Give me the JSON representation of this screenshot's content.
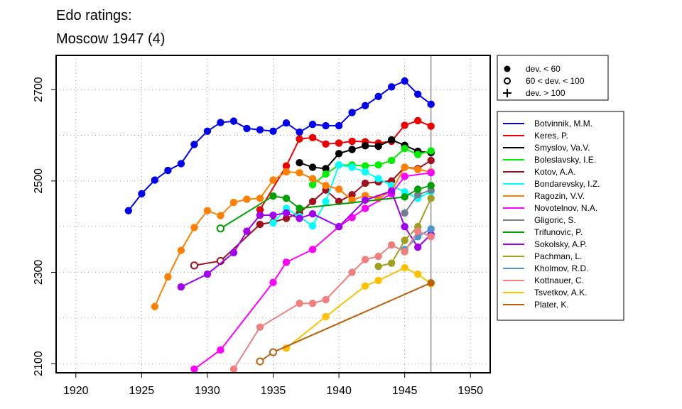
{
  "chart_data": {
    "type": "line",
    "title_line1": "Edo ratings:",
    "title_line2": "Moscow 1947 (4)",
    "xlabel": "",
    "ylabel": "",
    "xlim": [
      1918.5,
      1951.5
    ],
    "ylim": [
      2080,
      2775
    ],
    "x_ticks": [
      1920,
      1925,
      1930,
      1935,
      1940,
      1945,
      1950
    ],
    "y_ticks": [
      2100,
      2300,
      2500,
      2700
    ],
    "y_minor_gridlines": [
      2100,
      2200,
      2300,
      2400,
      2500,
      2600,
      2700
    ],
    "grid": "dotted",
    "event_line_x": 1947,
    "marker_legend": [
      {
        "symbol": "filled-circle",
        "label": "dev. < 60"
      },
      {
        "symbol": "open-circle",
        "label": "60 < dev. < 100"
      },
      {
        "symbol": "plus",
        "label": "dev. > 100"
      }
    ],
    "series": [
      {
        "name": "Botvinnik, M.M.",
        "color": "#0000EE",
        "points": [
          [
            1924,
            2435,
            "f"
          ],
          [
            1925,
            2472,
            "f"
          ],
          [
            1926,
            2502,
            "f"
          ],
          [
            1927,
            2523,
            "f"
          ],
          [
            1928,
            2538,
            "f"
          ],
          [
            1929,
            2580,
            "f"
          ],
          [
            1930,
            2609,
            "f"
          ],
          [
            1931,
            2628,
            "f"
          ],
          [
            1932,
            2631,
            "f"
          ],
          [
            1933,
            2615,
            "f"
          ],
          [
            1934,
            2612,
            "f"
          ],
          [
            1935,
            2609,
            "f"
          ],
          [
            1936,
            2627,
            "f"
          ],
          [
            1937,
            2607,
            "f"
          ],
          [
            1938,
            2624,
            "f"
          ],
          [
            1939,
            2621,
            "f"
          ],
          [
            1940,
            2621,
            "f"
          ],
          [
            1941,
            2650,
            "f"
          ],
          [
            1942,
            2665,
            "f"
          ],
          [
            1943,
            2685,
            "f"
          ],
          [
            1944,
            2706,
            "f"
          ],
          [
            1945,
            2719,
            "f"
          ],
          [
            1946,
            2690,
            "f"
          ],
          [
            1947,
            2668,
            "f"
          ]
        ]
      },
      {
        "name": "Keres, P.",
        "color": "#EE0000",
        "points": [
          [
            1934,
            2437,
            "f"
          ],
          [
            1936,
            2533,
            "f"
          ],
          [
            1937,
            2592,
            "f"
          ],
          [
            1938,
            2595,
            "f"
          ],
          [
            1939,
            2581,
            "f"
          ],
          [
            1940,
            2583,
            "f"
          ],
          [
            1941,
            2587,
            "f"
          ],
          [
            1942,
            2586,
            "f"
          ],
          [
            1943,
            2583,
            "f"
          ],
          [
            1944,
            2587,
            "f"
          ],
          [
            1945,
            2622,
            "f"
          ],
          [
            1946,
            2632,
            "f"
          ],
          [
            1947,
            2620,
            "f"
          ]
        ]
      },
      {
        "name": "Smyslov, Va.V.",
        "color": "#000000",
        "points": [
          [
            1937,
            2540,
            "f"
          ],
          [
            1938,
            2530,
            "f"
          ],
          [
            1939,
            2527,
            "f"
          ],
          [
            1940,
            2560,
            "f"
          ],
          [
            1941,
            2569,
            "f"
          ],
          [
            1942,
            2577,
            "f"
          ],
          [
            1943,
            2576,
            "f"
          ],
          [
            1944,
            2590,
            "f"
          ],
          [
            1945,
            2578,
            "f"
          ],
          [
            1946,
            2565,
            "f"
          ],
          [
            1947,
            2562,
            "f"
          ]
        ]
      },
      {
        "name": "Boleslavsky, I.E.",
        "color": "#00EE00",
        "points": [
          [
            1938,
            2492,
            "f"
          ],
          [
            1939,
            2515,
            "f"
          ],
          [
            1940,
            2535,
            "f"
          ],
          [
            1941,
            2535,
            "f"
          ],
          [
            1942,
            2533,
            "f"
          ],
          [
            1943,
            2535,
            "f"
          ],
          [
            1944,
            2545,
            "f"
          ],
          [
            1945,
            2571,
            "f"
          ],
          [
            1946,
            2558,
            "f"
          ],
          [
            1947,
            2566,
            "f"
          ]
        ]
      },
      {
        "name": "Kotov, A.A.",
        "color": "#A0101E",
        "points": [
          [
            1929,
            2315,
            "o"
          ],
          [
            1931,
            2325,
            "o"
          ],
          [
            1934,
            2405,
            "f"
          ],
          [
            1935,
            2410,
            "f"
          ],
          [
            1936,
            2418,
            "f"
          ],
          [
            1937,
            2430,
            "f"
          ],
          [
            1938,
            2455,
            "f"
          ],
          [
            1939,
            2480,
            "f"
          ],
          [
            1940,
            2455,
            "f"
          ],
          [
            1941,
            2470,
            "f"
          ],
          [
            1942,
            2495,
            "f"
          ],
          [
            1943,
            2498,
            "f"
          ],
          [
            1944,
            2500,
            "f"
          ],
          [
            1945,
            2530,
            "f"
          ],
          [
            1946,
            2527,
            "f"
          ],
          [
            1947,
            2545,
            "f"
          ]
        ]
      },
      {
        "name": "Bondarevsky, I.Z.",
        "color": "#00FFFF",
        "points": [
          [
            1935,
            2408,
            "f"
          ],
          [
            1936,
            2440,
            "f"
          ],
          [
            1937,
            2422,
            "f"
          ],
          [
            1938,
            2402,
            "f"
          ],
          [
            1939,
            2455,
            "f"
          ],
          [
            1940,
            2535,
            "f"
          ],
          [
            1941,
            2530,
            "f"
          ],
          [
            1942,
            2520,
            "f"
          ],
          [
            1943,
            2505,
            "f"
          ],
          [
            1944,
            2490,
            "f"
          ],
          [
            1945,
            2476,
            "f"
          ],
          [
            1946,
            2462,
            "f"
          ],
          [
            1947,
            2477,
            "f"
          ]
        ]
      },
      {
        "name": "Ragozin, V.V.",
        "color": "#FF7F00",
        "points": [
          [
            1926,
            2225,
            "f"
          ],
          [
            1927,
            2290,
            "f"
          ],
          [
            1928,
            2348,
            "f"
          ],
          [
            1929,
            2398,
            "f"
          ],
          [
            1930,
            2435,
            "f"
          ],
          [
            1931,
            2424,
            "f"
          ],
          [
            1932,
            2453,
            "f"
          ],
          [
            1933,
            2460,
            "f"
          ],
          [
            1934,
            2462,
            "f"
          ],
          [
            1935,
            2502,
            "f"
          ],
          [
            1936,
            2520,
            "f"
          ],
          [
            1937,
            2518,
            "f"
          ],
          [
            1938,
            2505,
            "f"
          ],
          [
            1939,
            2490,
            "f"
          ],
          [
            1940,
            2482,
            "f"
          ],
          [
            1941,
            2458,
            "f"
          ],
          [
            1942,
            2468,
            "f"
          ],
          [
            1943,
            2462,
            "f"
          ],
          [
            1944,
            2478,
            "f"
          ],
          [
            1945,
            2530,
            "f"
          ],
          [
            1946,
            2525,
            "f"
          ],
          [
            1947,
            2520,
            "f"
          ]
        ]
      },
      {
        "name": "Novotelnov, N.A.",
        "color": "#FF00FF",
        "points": [
          [
            1929,
            2088,
            "f"
          ],
          [
            1931,
            2130,
            "f"
          ],
          [
            1935,
            2278,
            "f"
          ],
          [
            1936,
            2322,
            "f"
          ],
          [
            1938,
            2350,
            "f"
          ],
          [
            1940,
            2400,
            "f"
          ],
          [
            1941,
            2420,
            "f"
          ],
          [
            1942,
            2440,
            "f"
          ],
          [
            1944,
            2472,
            "f"
          ],
          [
            1945,
            2510,
            "f"
          ],
          [
            1947,
            2518,
            "f"
          ]
        ]
      },
      {
        "name": "Gligoric, S.",
        "color": "#708090",
        "points": [
          [
            1945,
            2430,
            "f"
          ],
          [
            1946,
            2470,
            "f"
          ],
          [
            1947,
            2480,
            "f"
          ]
        ]
      },
      {
        "name": "Trifunovic, P.",
        "color": "#00A000",
        "points": [
          [
            1931,
            2396,
            "o"
          ],
          [
            1935,
            2467,
            "f"
          ],
          [
            1936,
            2462,
            "f"
          ],
          [
            1937,
            2440,
            "f"
          ],
          [
            1945,
            2465,
            "f"
          ],
          [
            1946,
            2482,
            "f"
          ],
          [
            1947,
            2490,
            "f"
          ]
        ]
      },
      {
        "name": "Sokolsky, A.P.",
        "color": "#A000EE",
        "points": [
          [
            1928,
            2268,
            "f"
          ],
          [
            1930,
            2296,
            "f"
          ],
          [
            1932,
            2343,
            "f"
          ],
          [
            1933,
            2390,
            "f"
          ],
          [
            1934,
            2425,
            "f"
          ],
          [
            1935,
            2425,
            "f"
          ],
          [
            1936,
            2430,
            "f"
          ],
          [
            1937,
            2418,
            "f"
          ],
          [
            1938,
            2428,
            "f"
          ],
          [
            1940,
            2400,
            "f"
          ],
          [
            1942,
            2458,
            "f"
          ],
          [
            1944,
            2478,
            "f"
          ],
          [
            1945,
            2400,
            "f"
          ],
          [
            1946,
            2355,
            "f"
          ],
          [
            1947,
            2383,
            "f"
          ]
        ]
      },
      {
        "name": "Pachman, L.",
        "color": "#A0A020",
        "points": [
          [
            1943,
            2313,
            "f"
          ],
          [
            1944,
            2320,
            "f"
          ],
          [
            1945,
            2370,
            "f"
          ],
          [
            1946,
            2400,
            "f"
          ],
          [
            1947,
            2462,
            "f"
          ]
        ]
      },
      {
        "name": "Kholmov, R.D.",
        "color": "#4F94CD",
        "points": [
          [
            1945,
            2350,
            "f"
          ],
          [
            1946,
            2378,
            "f"
          ],
          [
            1947,
            2395,
            "f"
          ]
        ]
      },
      {
        "name": "Kottnauer, C.",
        "color": "#F08080",
        "points": [
          [
            1932,
            2088,
            "f"
          ],
          [
            1934,
            2180,
            "f"
          ],
          [
            1937,
            2232,
            "f"
          ],
          [
            1938,
            2232,
            "f"
          ],
          [
            1939,
            2240,
            "f"
          ],
          [
            1941,
            2300,
            "f"
          ],
          [
            1942,
            2328,
            "f"
          ],
          [
            1943,
            2335,
            "f"
          ],
          [
            1944,
            2360,
            "f"
          ],
          [
            1945,
            2345,
            "f"
          ],
          [
            1946,
            2390,
            "f"
          ],
          [
            1947,
            2378,
            "f"
          ]
        ]
      },
      {
        "name": "Tsvetkov, A.K.",
        "color": "#FFC000",
        "points": [
          [
            1936,
            2134,
            "f"
          ],
          [
            1939,
            2203,
            "f"
          ],
          [
            1942,
            2270,
            "f"
          ],
          [
            1943,
            2282,
            "f"
          ],
          [
            1945,
            2310,
            "f"
          ],
          [
            1946,
            2296,
            "f"
          ],
          [
            1947,
            2275,
            "f"
          ]
        ]
      },
      {
        "name": "Plater, K.",
        "color": "#B8600B",
        "points": [
          [
            1934,
            2105,
            "o"
          ],
          [
            1935,
            2125,
            "o"
          ],
          [
            1947,
            2277,
            "f"
          ]
        ]
      }
    ]
  }
}
